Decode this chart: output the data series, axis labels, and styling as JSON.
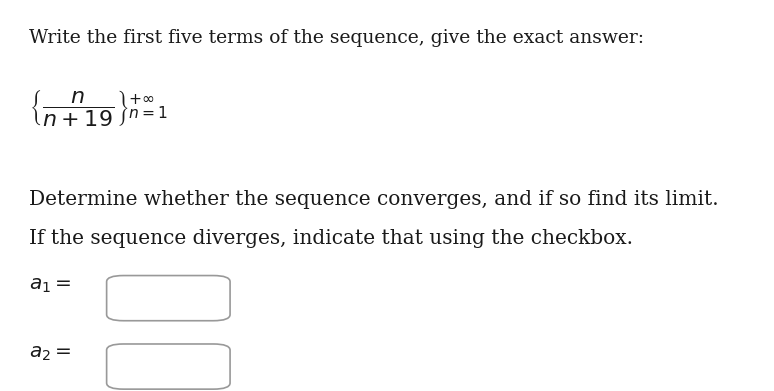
{
  "title_text": "Write the first five terms of the sequence, give the exact answer:",
  "seq_math": "$\\left\\{\\dfrac{n}{n+19}\\right\\}_{n=1}^{+\\infty}$",
  "line2": "Determine whether the sequence converges, and if so find its limit.",
  "line3": "If the sequence diverges, indicate that using the checkbox.",
  "label1": "$a_1 =$",
  "label2": "$a_2 =$",
  "bg_color": "#ffffff",
  "text_color": "#1a1a1a",
  "font_size_title": 13.5,
  "font_size_seq": 16,
  "font_size_body": 14.5,
  "font_size_labels": 14.5,
  "box_edge_color": "#999999",
  "box_face_color": "#ffffff"
}
